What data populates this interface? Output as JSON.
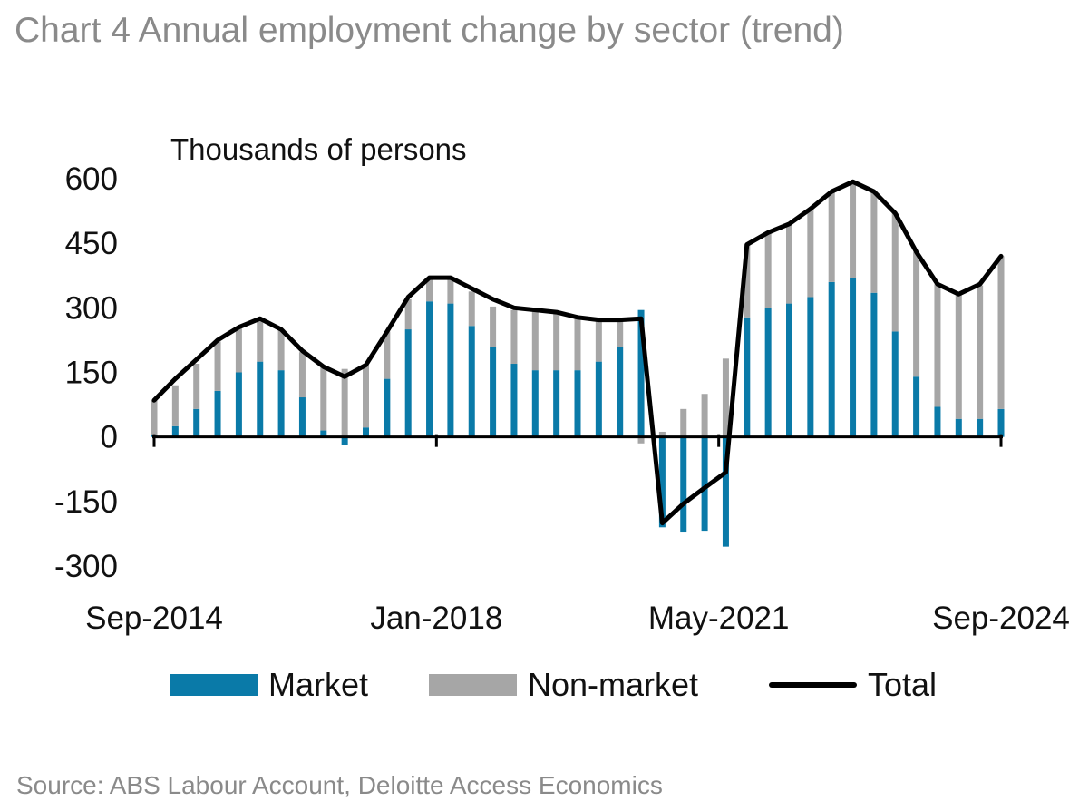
{
  "title": "Chart 4 Annual employment change by sector (trend)",
  "source": "Source: ABS Labour Account, Deloitte Access Economics",
  "colors": {
    "market": "#0a7aa8",
    "non_market": "#a6a6a6",
    "total": "#000000"
  },
  "chart_data": {
    "type": "bar",
    "stacked": true,
    "unit_label": "Thousands of persons",
    "x_tick_labels": [
      "Sep-2014",
      "Jan-2018",
      "May-2021",
      "Sep-2024"
    ],
    "ylim": [
      -300,
      600
    ],
    "y_ticks": [
      600,
      450,
      300,
      150,
      0,
      -150,
      -300
    ],
    "grid": false,
    "legend_position": "bottom",
    "series": [
      {
        "name": "Market",
        "kind": "bar",
        "values": [
          5,
          25,
          65,
          107,
          150,
          175,
          155,
          92,
          15,
          -18,
          22,
          135,
          250,
          315,
          310,
          258,
          208,
          170,
          155,
          155,
          155,
          175,
          208,
          295,
          -210,
          -220,
          -218,
          -255,
          278,
          300,
          310,
          325,
          360,
          370,
          335,
          245,
          140,
          70,
          42,
          42,
          65
        ]
      },
      {
        "name": "Non-market",
        "kind": "bar",
        "values": [
          80,
          95,
          105,
          115,
          102,
          100,
          95,
          105,
          148,
          158,
          145,
          110,
          70,
          55,
          60,
          80,
          95,
          125,
          140,
          135,
          120,
          95,
          65,
          -15,
          12,
          65,
          100,
          182,
          170,
          175,
          185,
          205,
          210,
          220,
          235,
          275,
          290,
          285,
          290,
          310,
          355
        ]
      },
      {
        "name": "Total",
        "kind": "line",
        "values": [
          85,
          135,
          180,
          225,
          255,
          275,
          250,
          200,
          163,
          140,
          167,
          245,
          325,
          370,
          370,
          345,
          320,
          300,
          295,
          290,
          278,
          272,
          272,
          275,
          -200,
          -155,
          -118,
          -82,
          447,
          475,
          495,
          530,
          570,
          593,
          570,
          520,
          430,
          355,
          332,
          355,
          420
        ]
      }
    ]
  },
  "legend": {
    "market": "Market",
    "non_market": "Non-market",
    "total": "Total"
  }
}
